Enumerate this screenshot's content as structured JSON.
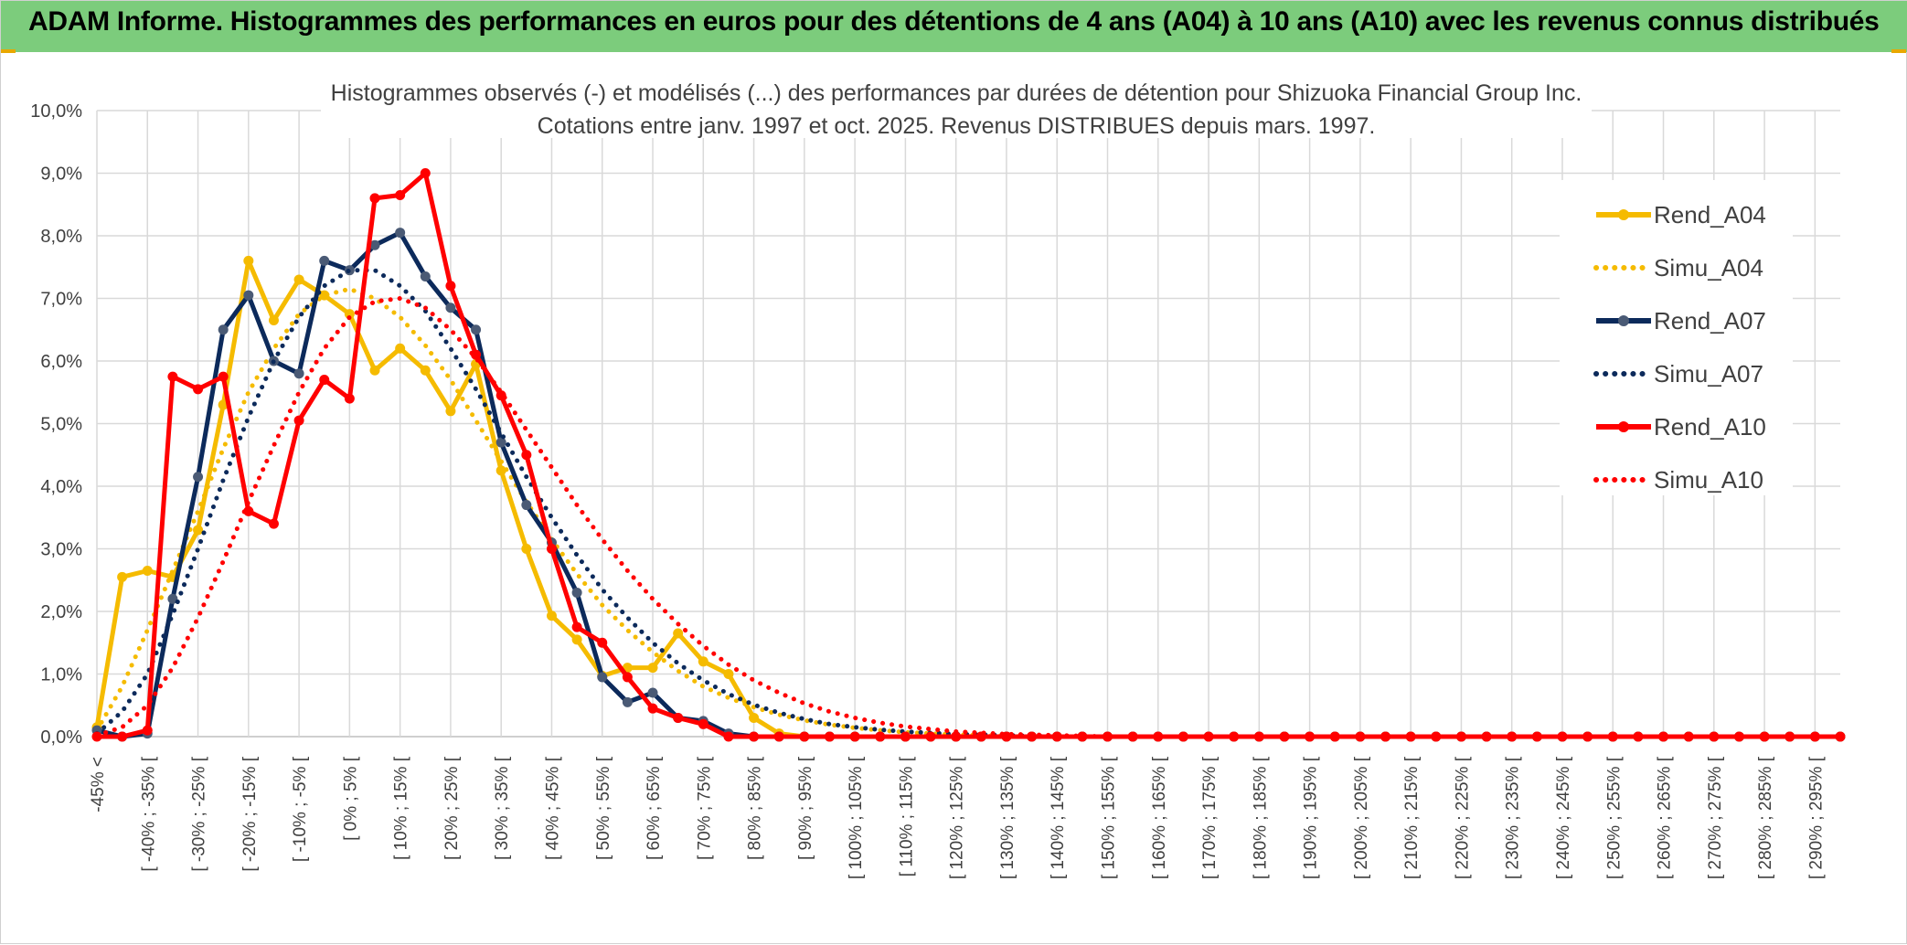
{
  "header": {
    "title": "ADAM Informe. Histogrammes des performances en euros pour des détentions de 4 ans (A04) à 10 ans (A10) avec les revenus connus distribués"
  },
  "colors": {
    "header_bg": "#7ccc7c",
    "a04": "#f5bb00",
    "a07": "#0c2a5b",
    "a07_marker": "#4a5a75",
    "a10": "#ff0000",
    "grid": "#d9d9d9",
    "axis": "#bfbfbf"
  },
  "chart_data": {
    "type": "line",
    "title_line1": "Histogrammes observés (-) et modélisés (...) des performances par durées de détention pour Shizuoka Financial Group Inc.",
    "title_line2": "Cotations entre janv. 1997 et oct. 2025. Revenus DISTRIBUES depuis mars. 1997.",
    "y_ticks": [
      "0,0%",
      "1,0%",
      "2,0%",
      "3,0%",
      "4,0%",
      "5,0%",
      "6,0%",
      "7,0%",
      "8,0%",
      "9,0%",
      "10,0%"
    ],
    "ylim": [
      0,
      10
    ],
    "x_labels": [
      "-45% <",
      "[ -40% ; -35% [",
      "[ -30% ; -25% [",
      "[ -20% ; -15% [",
      "[ -10% ; -5% [",
      "[ 0% ; 5% [",
      "[ 10% ; 15% [",
      "[ 20% ; 25% [",
      "[ 30% ; 35% [",
      "[ 40% ; 45% [",
      "[ 50% ; 55% [",
      "[ 60% ; 65% [",
      "[ 70% ; 75% [",
      "[ 80% ; 85% [",
      "[ 90% ; 95% [",
      "[ 100% ; 105% [",
      "[ 110% ; 115% [",
      "[ 120% ; 125% [",
      "[ 130% ; 135% [",
      "[ 140% ; 145% [",
      "[ 150% ; 155% [",
      "[ 160% ; 165% [",
      "[ 170% ; 175% [",
      "[ 180% ; 185% [",
      "[ 190% ; 195% [",
      "[ 200% ; 205% [",
      "[ 210% ; 215% [",
      "[ 220% ; 225% [",
      "[ 230% ; 235% [",
      "[ 240% ; 245% [",
      "[ 250% ; 255% [",
      "[ 260% ; 265% [",
      "[ 270% ; 275% [",
      "[ 280% ; 285% [",
      "[ 290% ; 295% ["
    ],
    "legend_position": "right",
    "series": [
      {
        "name": "Rend_A04",
        "style": "solid",
        "color": "#f5bb00",
        "values": [
          0.15,
          2.55,
          2.65,
          2.55,
          3.3,
          5.3,
          7.6,
          6.65,
          7.3,
          7.05,
          6.75,
          5.85,
          6.2,
          5.85,
          5.2,
          5.95,
          4.25,
          3.0,
          1.93,
          1.55,
          0.97,
          1.1,
          1.1,
          1.65,
          1.2,
          1.0,
          0.3,
          0.05,
          0.0,
          0.0,
          0.0,
          0.0,
          0.0,
          0.0,
          0.0,
          0.0,
          0.0,
          0.0,
          0.0,
          0.0,
          0.0,
          0.0,
          0.0,
          0.0,
          0.0,
          0.0,
          0.0,
          0.0,
          0.0,
          0.0,
          0.0,
          0.0,
          0.0,
          0.0,
          0.0,
          0.0,
          0.0,
          0.0,
          0.0,
          0.0,
          0.0,
          0.0,
          0.0,
          0.0,
          0.0,
          0.0,
          0.0,
          0.0,
          0.0,
          0.0
        ]
      },
      {
        "name": "Simu_A04",
        "style": "dotted",
        "color": "#f5bb00",
        "values": [
          0.1,
          0.8,
          1.7,
          2.65,
          3.6,
          4.6,
          5.5,
          6.2,
          6.75,
          7.05,
          7.15,
          7.0,
          6.7,
          6.25,
          5.7,
          5.05,
          4.4,
          3.75,
          3.15,
          2.6,
          2.1,
          1.7,
          1.35,
          1.05,
          0.8,
          0.62,
          0.47,
          0.35,
          0.26,
          0.19,
          0.14,
          0.1,
          0.07,
          0.05,
          0.03,
          0.02,
          0.01,
          0.0,
          0.0,
          0.0,
          0.0,
          0.0,
          0.0,
          0.0,
          0.0,
          0.0,
          0.0,
          0.0,
          0.0,
          0.0,
          0.0,
          0.0,
          0.0,
          0.0,
          0.0,
          0.0,
          0.0,
          0.0,
          0.0,
          0.0,
          0.0,
          0.0,
          0.0,
          0.0,
          0.0,
          0.0,
          0.0,
          0.0,
          0.0,
          0.0
        ]
      },
      {
        "name": "Rend_A07",
        "style": "solid",
        "color": "#0c2a5b",
        "values": [
          0.1,
          0.0,
          0.05,
          2.2,
          4.15,
          6.5,
          7.05,
          6.0,
          5.8,
          7.6,
          7.45,
          7.85,
          8.05,
          7.35,
          6.85,
          6.5,
          4.7,
          3.7,
          3.1,
          2.3,
          0.95,
          0.55,
          0.7,
          0.3,
          0.25,
          0.05,
          0.0,
          0.0,
          0.0,
          0.0,
          0.0,
          0.0,
          0.0,
          0.0,
          0.0,
          0.0,
          0.0,
          0.0,
          0.0,
          0.0,
          0.0,
          0.0,
          0.0,
          0.0,
          0.0,
          0.0,
          0.0,
          0.0,
          0.0,
          0.0,
          0.0,
          0.0,
          0.0,
          0.0,
          0.0,
          0.0,
          0.0,
          0.0,
          0.0,
          0.0,
          0.0,
          0.0,
          0.0,
          0.0,
          0.0,
          0.0,
          0.0,
          0.0,
          0.0,
          0.0
        ]
      },
      {
        "name": "Simu_A07",
        "style": "dotted",
        "color": "#0c2a5b",
        "values": [
          0.05,
          0.4,
          1.0,
          1.95,
          3.0,
          4.1,
          5.1,
          6.0,
          6.7,
          7.2,
          7.45,
          7.45,
          7.2,
          6.8,
          6.2,
          5.55,
          4.85,
          4.15,
          3.5,
          2.9,
          2.35,
          1.9,
          1.5,
          1.17,
          0.9,
          0.68,
          0.51,
          0.38,
          0.28,
          0.2,
          0.15,
          0.11,
          0.08,
          0.06,
          0.04,
          0.03,
          0.02,
          0.01,
          0.0,
          0.0,
          0.0,
          0.0,
          0.0,
          0.0,
          0.0,
          0.0,
          0.0,
          0.0,
          0.0,
          0.0,
          0.0,
          0.0,
          0.0,
          0.0,
          0.0,
          0.0,
          0.0,
          0.0,
          0.0,
          0.0,
          0.0,
          0.0,
          0.0,
          0.0,
          0.0,
          0.0,
          0.0,
          0.0,
          0.0,
          0.0
        ]
      },
      {
        "name": "Rend_A10",
        "style": "solid",
        "color": "#ff0000",
        "values": [
          0.0,
          0.0,
          0.1,
          5.75,
          5.55,
          5.75,
          3.6,
          3.4,
          5.05,
          5.7,
          5.4,
          8.6,
          8.65,
          9.0,
          7.2,
          6.1,
          5.45,
          4.5,
          3.0,
          1.75,
          1.5,
          0.95,
          0.45,
          0.3,
          0.2,
          0.0,
          0.0,
          0.0,
          0.0,
          0.0,
          0.0,
          0.0,
          0.0,
          0.0,
          0.0,
          0.0,
          0.0,
          0.0,
          0.0,
          0.0,
          0.0,
          0.0,
          0.0,
          0.0,
          0.0,
          0.0,
          0.0,
          0.0,
          0.0,
          0.0,
          0.0,
          0.0,
          0.0,
          0.0,
          0.0,
          0.0,
          0.0,
          0.0,
          0.0,
          0.0,
          0.0,
          0.0,
          0.0,
          0.0,
          0.0,
          0.0,
          0.0,
          0.0,
          0.0,
          0.0
        ]
      },
      {
        "name": "Simu_A10",
        "style": "dotted",
        "color": "#ff0000",
        "values": [
          0.02,
          0.15,
          0.5,
          1.1,
          1.9,
          2.8,
          3.75,
          4.65,
          5.5,
          6.2,
          6.7,
          6.95,
          7.0,
          6.85,
          6.5,
          6.05,
          5.5,
          4.9,
          4.3,
          3.7,
          3.15,
          2.65,
          2.2,
          1.8,
          1.45,
          1.15,
          0.9,
          0.7,
          0.53,
          0.4,
          0.3,
          0.22,
          0.16,
          0.12,
          0.08,
          0.06,
          0.04,
          0.03,
          0.02,
          0.01,
          0.0,
          0.0,
          0.0,
          0.0,
          0.0,
          0.0,
          0.0,
          0.0,
          0.0,
          0.0,
          0.0,
          0.0,
          0.0,
          0.0,
          0.0,
          0.0,
          0.0,
          0.0,
          0.0,
          0.0,
          0.0,
          0.0,
          0.0,
          0.0,
          0.0,
          0.0,
          0.0,
          0.0,
          0.0,
          0.0
        ]
      }
    ]
  }
}
